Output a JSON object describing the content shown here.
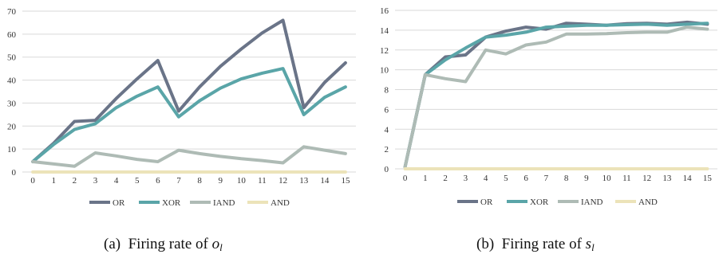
{
  "chart_data": [
    {
      "id": "a",
      "type": "line",
      "x": [
        0,
        1,
        2,
        3,
        4,
        5,
        6,
        7,
        8,
        9,
        10,
        11,
        12,
        13,
        14,
        15
      ],
      "ylim": [
        0,
        70
      ],
      "yticks": [
        0,
        10,
        20,
        30,
        40,
        50,
        60,
        70
      ],
      "grid": "horizontal",
      "legend_position": "bottom",
      "series": [
        {
          "name": "OR",
          "color": "#6a7488",
          "values": [
            4.5,
            12.5,
            22,
            22.5,
            32,
            40.5,
            48.5,
            26.5,
            37,
            46,
            53.5,
            60.5,
            66,
            28,
            39,
            47.5
          ]
        },
        {
          "name": "XOR",
          "color": "#5aa5a8",
          "values": [
            4.5,
            12,
            18.5,
            21,
            28,
            33,
            37,
            24,
            31,
            36.5,
            40.5,
            43,
            45,
            25,
            32.5,
            37
          ]
        },
        {
          "name": "IAND",
          "color": "#aebbb5",
          "values": [
            4.5,
            3.5,
            2.5,
            8.3,
            7,
            5.5,
            4.5,
            9.5,
            8,
            6.8,
            5.8,
            5,
            4,
            11,
            9.5,
            8
          ]
        },
        {
          "name": "AND",
          "color": "#ece3b9",
          "values": [
            0,
            0,
            0,
            0,
            0,
            0,
            0,
            0,
            0,
            0,
            0,
            0,
            0,
            0,
            0,
            0
          ]
        }
      ],
      "caption": {
        "label": "(a)",
        "text": "Firing rate of",
        "var": "o",
        "sub": "l"
      }
    },
    {
      "id": "b",
      "type": "line",
      "x": [
        0,
        1,
        2,
        3,
        4,
        5,
        6,
        7,
        8,
        9,
        10,
        11,
        12,
        13,
        14,
        15
      ],
      "ylim": [
        0,
        16
      ],
      "yticks": [
        0,
        2,
        4,
        6,
        8,
        10,
        12,
        14,
        16
      ],
      "grid": "horizontal",
      "legend_position": "bottom",
      "series": [
        {
          "name": "OR",
          "color": "#6a7488",
          "values": [
            0.2,
            9.5,
            11.3,
            11.5,
            13.3,
            13.9,
            14.3,
            14.1,
            14.7,
            14.6,
            14.5,
            14.65,
            14.7,
            14.6,
            14.8,
            14.6
          ]
        },
        {
          "name": "XOR",
          "color": "#5aa5a8",
          "values": [
            0.2,
            9.5,
            11,
            12.2,
            13.3,
            13.5,
            13.8,
            14.3,
            14.4,
            14.5,
            14.5,
            14.55,
            14.6,
            14.5,
            14.6,
            14.7
          ]
        },
        {
          "name": "IAND",
          "color": "#aebbb5",
          "values": [
            0.2,
            9.5,
            9.1,
            8.8,
            12,
            11.6,
            12.5,
            12.8,
            13.6,
            13.6,
            13.65,
            13.75,
            13.8,
            13.8,
            14.3,
            14.1
          ]
        },
        {
          "name": "AND",
          "color": "#ece3b9",
          "values": [
            0,
            0,
            0,
            0,
            0,
            0,
            0,
            0,
            0,
            0,
            0,
            0,
            0,
            0,
            0,
            0
          ]
        }
      ],
      "caption": {
        "label": "(b)",
        "text": "Firing rate of",
        "var": "s",
        "sub": "l"
      }
    }
  ]
}
